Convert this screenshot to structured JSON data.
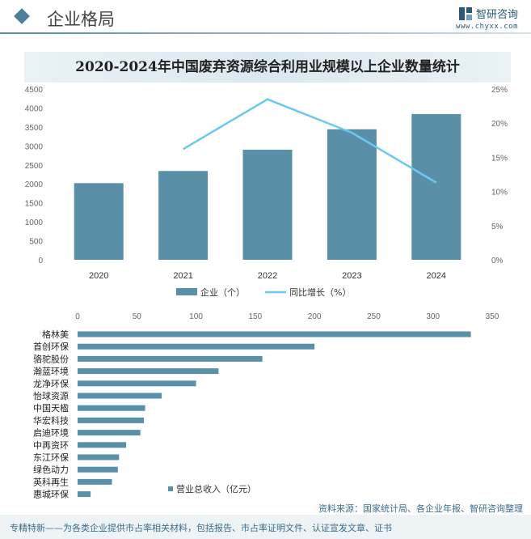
{
  "header": {
    "title": "企业格局",
    "brand_name": "智研咨询",
    "brand_url": "www.chyxx.com"
  },
  "colors": {
    "bar": "#5a8fa8",
    "line": "#6cc8ee",
    "accent": "#4d7e98"
  },
  "chart_data": [
    {
      "type": "bar",
      "title": "2020-2024年中国废弃资源综合利用业规模以上企业数量统计",
      "categories": [
        "2020",
        "2021",
        "2022",
        "2023",
        "2024"
      ],
      "series": [
        {
          "name": "企业（个）",
          "type": "bar",
          "axis": "left",
          "values": [
            2020,
            2340,
            2900,
            3440,
            3840
          ]
        },
        {
          "name": "同比增长（%）",
          "type": "line",
          "axis": "right",
          "values": [
            null,
            16.2,
            23.5,
            18.6,
            11.3
          ]
        }
      ],
      "y_left": {
        "ticks": [
          "0",
          "500",
          "1000",
          "1500",
          "2000",
          "2500",
          "3000",
          "3500",
          "4000",
          "4500"
        ],
        "ylim": [
          0,
          4500
        ]
      },
      "y_right": {
        "ticks": [
          "0%",
          "5%",
          "10%",
          "15%",
          "20%",
          "25%"
        ],
        "ylim": [
          0,
          25
        ]
      },
      "legend": "bottom",
      "grid": false
    },
    {
      "type": "bar",
      "orientation": "horizontal",
      "categories": [
        "格林美",
        "首创环保",
        "骆驼股份",
        "瀚蓝环境",
        "龙净环保",
        "怡球资源",
        "中国天楹",
        "华宏科技",
        "启迪环境",
        "中再资环",
        "东江环保",
        "绿色动力",
        "英科再生",
        "惠城环保"
      ],
      "series": [
        {
          "name": "营业总收入（亿元）",
          "values": [
            332,
            200,
            156,
            119,
            100,
            71,
            57,
            56,
            53,
            41,
            35,
            34,
            29,
            11
          ]
        }
      ],
      "x_ticks": [
        "0",
        "50",
        "100",
        "150",
        "200",
        "250",
        "300",
        "350"
      ],
      "xlim": [
        0,
        350
      ],
      "legend": "bottom-right",
      "grid": false
    }
  ],
  "source": "资料来源：国家统计局、各企业年报、智研咨询整理",
  "footer": "专精特新——为各类企业提供市占率相关材料，包括报告、市占率证明文件、认证宣发文章、证书"
}
